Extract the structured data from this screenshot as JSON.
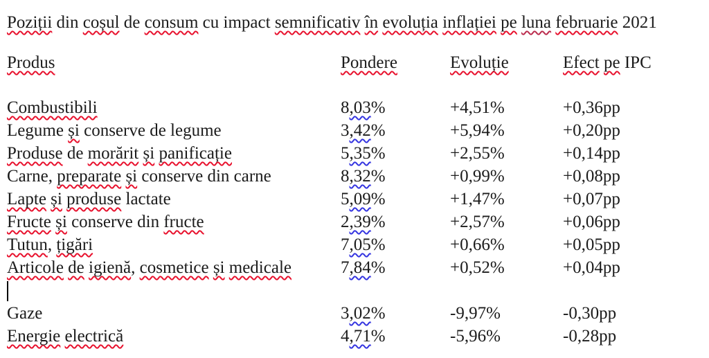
{
  "colors": {
    "background": "#ffffff",
    "text": "#1b1b1b",
    "spell_red": "#e8112d",
    "grammar_blue": "#3434e0",
    "mixed_crimson": "#bb2d4e",
    "caret": "#000000"
  },
  "title": {
    "text": "Poziții din coșul de consum cu impact semnificativ în evoluția inflației pe luna februarie 2021",
    "segments": [
      {
        "t": "Poziții",
        "u": "red"
      },
      {
        "t": " din "
      },
      {
        "t": "coșul",
        "u": "red"
      },
      {
        "t": " de "
      },
      {
        "t": "consum",
        "u": "red"
      },
      {
        "t": " cu impact "
      },
      {
        "t": "semnificativ",
        "u": "red"
      },
      {
        "t": " "
      },
      {
        "t": "în",
        "u": "red"
      },
      {
        "t": " "
      },
      {
        "t": "evoluția",
        "u": "red"
      },
      {
        "t": " "
      },
      {
        "t": "inflației",
        "u": "red"
      },
      {
        "t": " "
      },
      {
        "t": "pe",
        "u": "red"
      },
      {
        "t": " "
      },
      {
        "t": "luna",
        "u": "dark"
      },
      {
        "t": " "
      },
      {
        "t": "februarie",
        "u": "red"
      },
      {
        "t": " 2021"
      }
    ]
  },
  "table": {
    "header": {
      "cells": [
        [
          {
            "t": "Produs",
            "u": "red"
          }
        ],
        [
          {
            "t": "Pondere",
            "u": "red"
          }
        ],
        [
          {
            "t": "Evoluție",
            "u": "red"
          }
        ],
        [
          {
            "t": "Efect",
            "u": "red"
          },
          {
            "t": " "
          },
          {
            "t": "pe",
            "u": "red"
          },
          {
            "t": " IPC"
          }
        ]
      ]
    },
    "rows": [
      {
        "produs": "Combustibili",
        "pondere": "8,03%",
        "evolutie": "+4,51%",
        "efect": "+0,36pp",
        "cells": [
          [
            {
              "t": "Combustibili",
              "u": "red"
            }
          ],
          [
            {
              "t": "8"
            },
            {
              "t": ",03",
              "u": "blue"
            },
            {
              "t": "%"
            }
          ],
          [
            {
              "t": "+4,51%"
            }
          ],
          [
            {
              "t": "+0,36pp"
            }
          ]
        ]
      },
      {
        "produs": "Legume și conserve de legume",
        "pondere": "3,42%",
        "evolutie": "+5,94%",
        "efect": "+0,20pp",
        "cells": [
          [
            {
              "t": "Legume "
            },
            {
              "t": "și",
              "u": "red"
            },
            {
              "t": " conserve de legume"
            }
          ],
          [
            {
              "t": "3"
            },
            {
              "t": ",42",
              "u": "blue"
            },
            {
              "t": "%"
            }
          ],
          [
            {
              "t": "+5,94%"
            }
          ],
          [
            {
              "t": "+0,20pp"
            }
          ]
        ]
      },
      {
        "produs": "Produse de morărit și panificație",
        "pondere": "5,35%",
        "evolutie": "+2,55%",
        "efect": "+0,14pp",
        "cells": [
          [
            {
              "t": "Produse",
              "u": "red"
            },
            {
              "t": " de "
            },
            {
              "t": "morărit",
              "u": "red"
            },
            {
              "t": " "
            },
            {
              "t": "și",
              "u": "red"
            },
            {
              "t": " "
            },
            {
              "t": "panificație",
              "u": "red"
            }
          ],
          [
            {
              "t": "5"
            },
            {
              "t": ",35",
              "u": "blue"
            },
            {
              "t": "%"
            }
          ],
          [
            {
              "t": "+2,55%"
            }
          ],
          [
            {
              "t": "+0,14pp"
            }
          ]
        ]
      },
      {
        "produs": "Carne, preparate și conserve din carne",
        "pondere": "8,32%",
        "evolutie": "+0,99%",
        "efect": "+0,08pp",
        "cells": [
          [
            {
              "t": "Carne, "
            },
            {
              "t": "preparate",
              "u": "red"
            },
            {
              "t": " "
            },
            {
              "t": "și",
              "u": "red"
            },
            {
              "t": " conserve din carne"
            }
          ],
          [
            {
              "t": "8"
            },
            {
              "t": ",32",
              "u": "blue"
            },
            {
              "t": "%"
            }
          ],
          [
            {
              "t": "+0,99%"
            }
          ],
          [
            {
              "t": "+0,08pp"
            }
          ]
        ]
      },
      {
        "produs": "Lapte și produse lactate",
        "pondere": "5,09%",
        "evolutie": "+1,47%",
        "efect": "+0,07pp",
        "cells": [
          [
            {
              "t": "Lapte",
              "u": "red"
            },
            {
              "t": " "
            },
            {
              "t": "și",
              "u": "red"
            },
            {
              "t": " "
            },
            {
              "t": "produse",
              "u": "red"
            },
            {
              "t": " lactate"
            }
          ],
          [
            {
              "t": "5"
            },
            {
              "t": ",09",
              "u": "blue"
            },
            {
              "t": "%"
            }
          ],
          [
            {
              "t": "+1,47%"
            }
          ],
          [
            {
              "t": "+0,07pp"
            }
          ]
        ]
      },
      {
        "produs": "Fructe și conserve din fructe",
        "pondere": "2,39%",
        "evolutie": "+2,57%",
        "efect": "+0,06pp",
        "cells": [
          [
            {
              "t": "Fructe",
              "u": "red"
            },
            {
              "t": " "
            },
            {
              "t": "și",
              "u": "red"
            },
            {
              "t": " conserve din "
            },
            {
              "t": "fructe",
              "u": "red"
            }
          ],
          [
            {
              "t": "2"
            },
            {
              "t": ",39",
              "u": "blue"
            },
            {
              "t": "%"
            }
          ],
          [
            {
              "t": "+2,57%"
            }
          ],
          [
            {
              "t": "+0,06pp"
            }
          ]
        ]
      },
      {
        "produs": "Tutun, țigări",
        "pondere": "7,05%",
        "evolutie": "+0,66%",
        "efect": "+0,05pp",
        "cells": [
          [
            {
              "t": "Tutun",
              "u": "red"
            },
            {
              "t": ", "
            },
            {
              "t": "țigări",
              "u": "red"
            }
          ],
          [
            {
              "t": "7"
            },
            {
              "t": ",05",
              "u": "blue"
            },
            {
              "t": "%"
            }
          ],
          [
            {
              "t": "+0,66%"
            }
          ],
          [
            {
              "t": "+0,05pp"
            }
          ]
        ]
      },
      {
        "produs": "Articole de igienă, cosmetice și medicale",
        "pondere": "7,84%",
        "evolutie": "+0,52%",
        "efect": "+0,04pp",
        "cells": [
          [
            {
              "t": "Articole",
              "u": "red"
            },
            {
              "t": " "
            },
            {
              "t": "de",
              "u": "red"
            },
            {
              "t": " "
            },
            {
              "t": "igienă",
              "u": "red"
            },
            {
              "t": ", "
            },
            {
              "t": "cosmetice",
              "u": "red"
            },
            {
              "t": " "
            },
            {
              "t": "și",
              "u": "red"
            },
            {
              "t": " "
            },
            {
              "t": "medicale",
              "u": "red"
            }
          ],
          [
            {
              "t": "7"
            },
            {
              "t": ",84",
              "u": "blue"
            },
            {
              "t": "%"
            }
          ],
          [
            {
              "t": "+0,52%"
            }
          ],
          [
            {
              "t": "+0,04pp"
            }
          ]
        ]
      },
      {
        "blank": true,
        "caret": true
      },
      {
        "produs": "Gaze",
        "pondere": "3,02%",
        "evolutie": "-9,97%",
        "efect": "-0,30pp",
        "cells": [
          [
            {
              "t": "Gaze"
            }
          ],
          [
            {
              "t": "3"
            },
            {
              "t": ",02",
              "u": "blue"
            },
            {
              "t": "%"
            }
          ],
          [
            {
              "t": "-9,97%"
            }
          ],
          [
            {
              "t": "-0,30pp"
            }
          ]
        ]
      },
      {
        "produs": "Energie electrică",
        "pondere": "4,71%",
        "evolutie": "-5,96%",
        "efect": "-0,28pp",
        "cells": [
          [
            {
              "t": "Energie",
              "u": "red"
            },
            {
              "t": " "
            },
            {
              "t": "electrică",
              "u": "red"
            }
          ],
          [
            {
              "t": "4"
            },
            {
              "t": ",71",
              "u": "blue"
            },
            {
              "t": "%"
            }
          ],
          [
            {
              "t": "-5,96%"
            }
          ],
          [
            {
              "t": "-0,28pp"
            }
          ]
        ]
      }
    ]
  },
  "caret": {
    "visible": true
  }
}
